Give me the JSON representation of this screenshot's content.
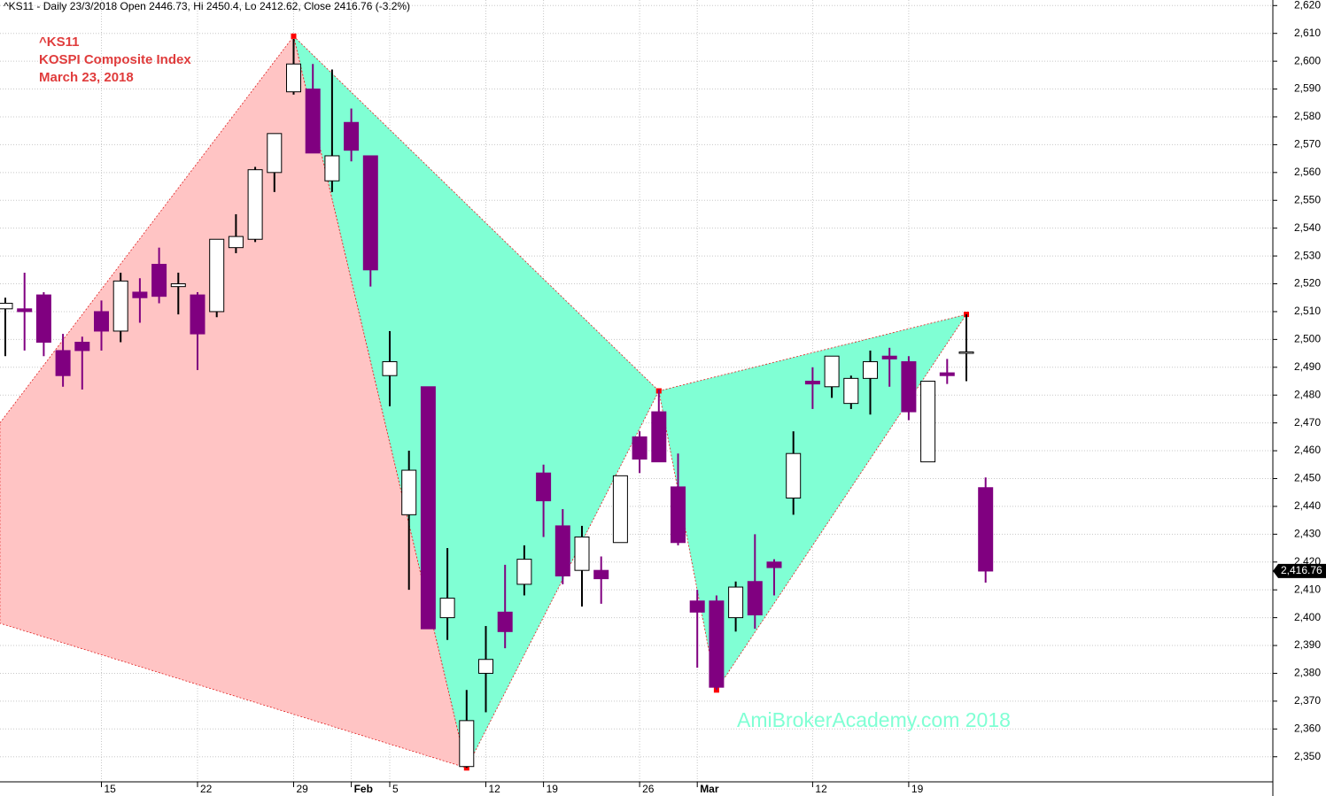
{
  "chart_data": {
    "type": "candlestick",
    "header": "^KS11 - Daily 23/3/2018 Open 2446.73, Hi 2450.4, Lo 2412.62, Close 2416.76 (-3.2%)",
    "legend_lines": [
      "^KS11",
      "KOSPI Composite Index",
      "March 23, 2018"
    ],
    "watermark": "AmiBrokerAcademy.com  2018",
    "categories": [
      null,
      null,
      null,
      null,
      null,
      "15",
      null,
      null,
      null,
      null,
      "22",
      null,
      null,
      null,
      null,
      "29",
      null,
      null,
      "Feb",
      null,
      "5",
      null,
      null,
      null,
      null,
      "12",
      null,
      null,
      "19",
      null,
      null,
      null,
      null,
      "26",
      null,
      null,
      "Mar",
      null,
      null,
      null,
      null,
      null,
      "12",
      null,
      null,
      null,
      null,
      "19",
      null,
      null,
      null,
      null
    ],
    "open": [
      2511,
      2511,
      2516,
      2496,
      2499,
      2510,
      2503,
      2517,
      2527,
      2519,
      2516,
      2510,
      2533,
      2536,
      2560,
      2589,
      2590,
      2557,
      2578,
      2566,
      2487,
      2437,
      2483,
      2400,
      2346.5,
      2380,
      2402,
      2412,
      2452,
      2433,
      2417,
      2417,
      2427,
      2465,
      2474,
      2447,
      2406,
      2406,
      2400,
      2413,
      2420,
      2443,
      2485,
      2483,
      2477,
      2486,
      2494,
      2492,
      2456,
      2488,
      2495,
      2446.73
    ],
    "high": [
      2515,
      2524,
      2517,
      2502,
      2501,
      2514,
      2524,
      2522,
      2533,
      2524,
      2517,
      2536,
      2545,
      2562,
      2574,
      2608,
      2599,
      2597,
      2583,
      2566,
      2503,
      2460,
      2483,
      2425,
      2374,
      2397,
      2419,
      2426,
      2455,
      2439,
      2433,
      2422,
      2451,
      2467,
      2482,
      2459,
      2410,
      2408,
      2413,
      2430,
      2421,
      2467,
      2490,
      2494,
      2487,
      2496,
      2497,
      2494,
      2485,
      2493,
      2509,
      2450.4
    ],
    "low": [
      2494,
      2496,
      2494,
      2483,
      2482,
      2496,
      2499,
      2506,
      2513,
      2509,
      2489,
      2508,
      2531,
      2535,
      2553,
      2588,
      2567,
      2553,
      2564,
      2519,
      2476,
      2410,
      2396,
      2392,
      2346,
      2366,
      2389,
      2408,
      2429,
      2412,
      2404,
      2405,
      2427,
      2452,
      2456,
      2426,
      2382,
      2374,
      2395,
      2396,
      2408,
      2437,
      2475,
      2479,
      2475,
      2473,
      2483,
      2471,
      2456,
      2484,
      2485,
      2412.62
    ],
    "close": [
      2513,
      2510,
      2499,
      2487,
      2496,
      2503,
      2521,
      2515,
      2515.5,
      2520,
      2502,
      2536,
      2537,
      2561,
      2574,
      2599,
      2567,
      2566,
      2568,
      2525,
      2492,
      2453,
      2396,
      2407,
      2363,
      2385,
      2395,
      2421,
      2442,
      2415,
      2429,
      2414,
      2451,
      2457,
      2456,
      2427,
      2402,
      2375,
      2411,
      2401,
      2418,
      2459,
      2484,
      2494,
      2486,
      2492,
      2493,
      2474,
      2485,
      2487,
      2495.5,
      2416.76
    ],
    "up_color": "#ffffff",
    "down_color": "#800080",
    "patterns": [
      {
        "color": "#ffc4c4",
        "points": [
          [
            -0.28,
            2470
          ],
          [
            15,
            2609
          ],
          [
            24,
            2346
          ],
          [
            -0.28,
            2398
          ]
        ]
      },
      {
        "color": "#80ffd4",
        "points": [
          [
            15,
            2609
          ],
          [
            34,
            2481.5
          ],
          [
            24,
            2346
          ]
        ]
      },
      {
        "color": "#80ffd4",
        "points": [
          [
            34,
            2481.5
          ],
          [
            50,
            2509
          ],
          [
            37,
            2374
          ]
        ]
      }
    ],
    "last_price": {
      "value": 2416.76,
      "label": "2,416.76"
    },
    "ylim": [
      2341,
      2622
    ],
    "yticks": [
      {
        "value": 2350,
        "label": "2,350"
      },
      {
        "value": 2360,
        "label": "2,360"
      },
      {
        "value": 2370,
        "label": "2,370"
      },
      {
        "value": 2380,
        "label": "2,380"
      },
      {
        "value": 2390,
        "label": "2,390"
      },
      {
        "value": 2400,
        "label": "2,400"
      },
      {
        "value": 2410,
        "label": "2,410"
      },
      {
        "value": 2420,
        "label": "2,420"
      },
      {
        "value": 2430,
        "label": "2,430"
      },
      {
        "value": 2440,
        "label": "2,440"
      },
      {
        "value": 2450,
        "label": "2,450"
      },
      {
        "value": 2460,
        "label": "2,460"
      },
      {
        "value": 2470,
        "label": "2,470"
      },
      {
        "value": 2480,
        "label": "2,480"
      },
      {
        "value": 2490,
        "label": "2,490"
      },
      {
        "value": 2500,
        "label": "2,500"
      },
      {
        "value": 2510,
        "label": "2,510"
      },
      {
        "value": 2520,
        "label": "2,520"
      },
      {
        "value": 2530,
        "label": "2,530"
      },
      {
        "value": 2540,
        "label": "2,540"
      },
      {
        "value": 2550,
        "label": "2,550"
      },
      {
        "value": 2560,
        "label": "2,560"
      },
      {
        "value": 2570,
        "label": "2,570"
      },
      {
        "value": 2580,
        "label": "2,580"
      },
      {
        "value": 2590,
        "label": "2,590"
      },
      {
        "value": 2600,
        "label": "2,600"
      },
      {
        "value": 2610,
        "label": "2,610"
      },
      {
        "value": 2620,
        "label": "2,620"
      }
    ],
    "grid": true
  }
}
